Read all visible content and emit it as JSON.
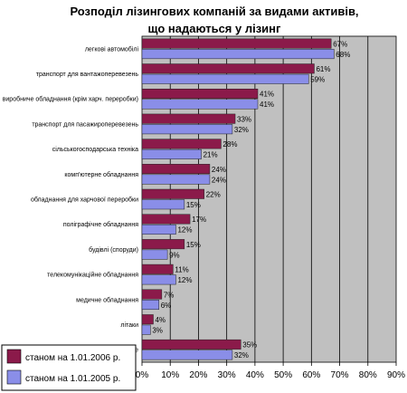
{
  "chart_data": {
    "type": "bar",
    "orientation": "horizontal",
    "title": "Розподіл лізингових компаній за видами активів,",
    "subtitle": "що надаються у лізинг",
    "categories": [
      "легкові автомобілі",
      "транспорт для вантажоперевезень",
      "виробниче обладнання (крім харч. переробки)",
      "транспорт для пасажироперевезень",
      "сільськогосподарська техніка",
      "комп'ютерне обладнання",
      "обладнання для харчової переробки",
      "поліграфічне обладнання",
      "будівлі (споруди)",
      "телекомунікаційне обладнання",
      "медичне обладнання",
      "літаки",
      "інше"
    ],
    "series": [
      {
        "name": "станом на 1.01.2006 р.",
        "color": "#8b1a4a",
        "values": [
          67,
          61,
          41,
          33,
          28,
          24,
          22,
          17,
          15,
          11,
          7,
          4,
          35
        ],
        "labels": [
          "67%",
          "61%",
          "41%",
          "33%",
          "28%",
          "24%",
          "22%",
          "17%",
          "15%",
          "11%",
          "7%",
          "4%",
          "35%"
        ]
      },
      {
        "name": "станом на 1.01.2005 р.",
        "color": "#8a8ee8",
        "values": [
          68,
          59,
          41,
          32,
          21,
          24,
          15,
          12,
          9,
          12,
          6,
          3,
          32
        ],
        "labels": [
          "68%",
          "59%",
          "41%",
          "32%",
          "21%",
          "24%",
          "15%",
          "12%",
          "9%",
          "12%",
          "6%",
          "3%",
          "32%"
        ]
      }
    ],
    "xlim": [
      0,
      90
    ],
    "xticks": [
      "0%",
      "10%",
      "20%",
      "30%",
      "40%",
      "50%",
      "60%",
      "70%",
      "80%",
      "90%"
    ],
    "grid": true,
    "legend_position": "bottom-left",
    "colors": {
      "plot_background": "#c0c0c0",
      "gridlines": "#000000"
    }
  }
}
